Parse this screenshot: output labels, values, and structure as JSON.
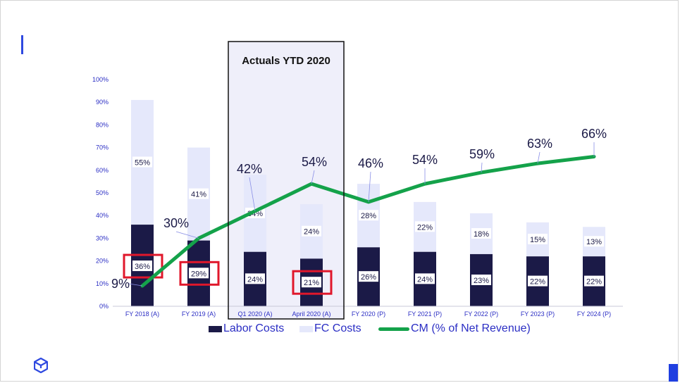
{
  "chart_data": {
    "type": "bar",
    "categories": [
      "FY 2018 (A)",
      "FY 2019 (A)",
      "Q1 2020 (A)",
      "April 2020 (A)",
      "FY 2020 (P)",
      "FY 2021 (P)",
      "FY 2022 (P)",
      "FY 2023 (P)",
      "FY 2024 (P)"
    ],
    "series": [
      {
        "name": "Labor Costs",
        "kind": "stacked-bar",
        "color": "#1b1a47",
        "values": [
          36,
          29,
          24,
          21,
          26,
          24,
          23,
          22,
          22
        ],
        "labels": [
          "36%",
          "29%",
          "24%",
          "21%",
          "26%",
          "24%",
          "23%",
          "22%",
          "22%"
        ]
      },
      {
        "name": "FC Costs",
        "kind": "stacked-bar",
        "color": "#e5e8fb",
        "values": [
          55,
          41,
          34,
          24,
          28,
          22,
          18,
          15,
          13
        ],
        "labels": [
          "55%",
          "41%",
          "34%",
          "24%",
          "28%",
          "22%",
          "18%",
          "15%",
          "13%"
        ]
      },
      {
        "name": "CM (% of Net Revenue)",
        "kind": "line",
        "color": "#14a24a",
        "values": [
          9,
          30,
          42,
          54,
          46,
          54,
          59,
          63,
          66
        ],
        "labels": [
          "9%",
          "30%",
          "42%",
          "54%",
          "46%",
          "54%",
          "59%",
          "63%",
          "66%"
        ]
      }
    ],
    "y_ticks": [
      "0%",
      "10%",
      "20%",
      "30%",
      "40%",
      "50%",
      "60%",
      "70%",
      "80%",
      "90%",
      "100%"
    ],
    "ylim": [
      0,
      100
    ],
    "annotations": {
      "box_title": "Actuals YTD 2020",
      "box_categories": [
        "Q1 2020 (A)",
        "April 2020 (A)"
      ],
      "highlighted_labor_labels": [
        "FY 2018 (A)",
        "FY 2019 (A)",
        "April 2020 (A)"
      ],
      "highlight_color": "#e0172b"
    },
    "legend_position": "bottom",
    "grid": false
  }
}
